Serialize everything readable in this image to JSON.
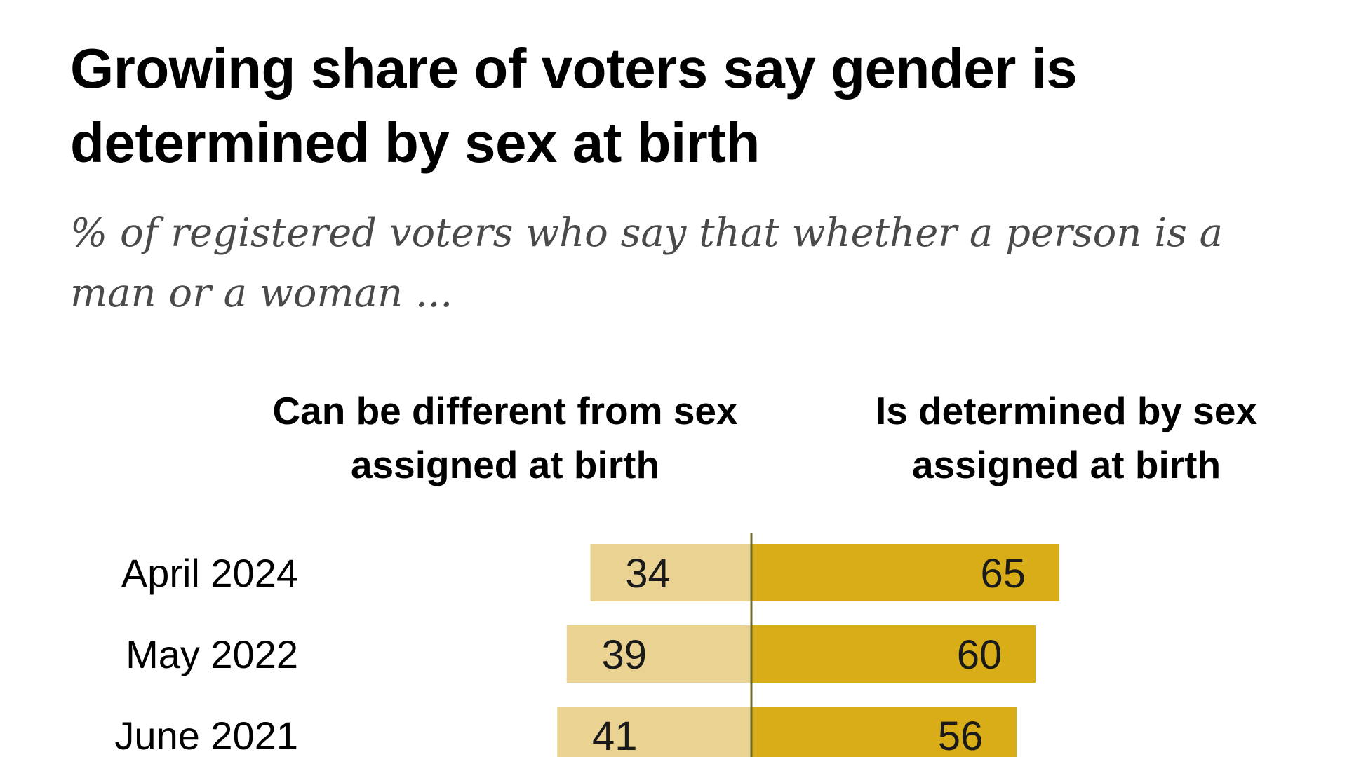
{
  "chart_data": {
    "type": "bar",
    "title": "Growing share of voters say gender is determined by sex at birth",
    "subtitle": "% of registered voters who say that whether a person is a man or a woman ...",
    "categories": [
      "April 2024",
      "May 2022",
      "June 2021"
    ],
    "series": [
      {
        "name": "Can be different from sex assigned at birth",
        "values": [
          34,
          39,
          41
        ],
        "color": "#e9d292"
      },
      {
        "name": "Is determined by sex assigned at birth",
        "values": [
          65,
          60,
          56
        ],
        "color": "#d8ad17"
      }
    ],
    "axis_color": "#6b6a2a",
    "xlabel": "",
    "ylabel": "",
    "grid": false,
    "legend": "column headers above bars"
  }
}
